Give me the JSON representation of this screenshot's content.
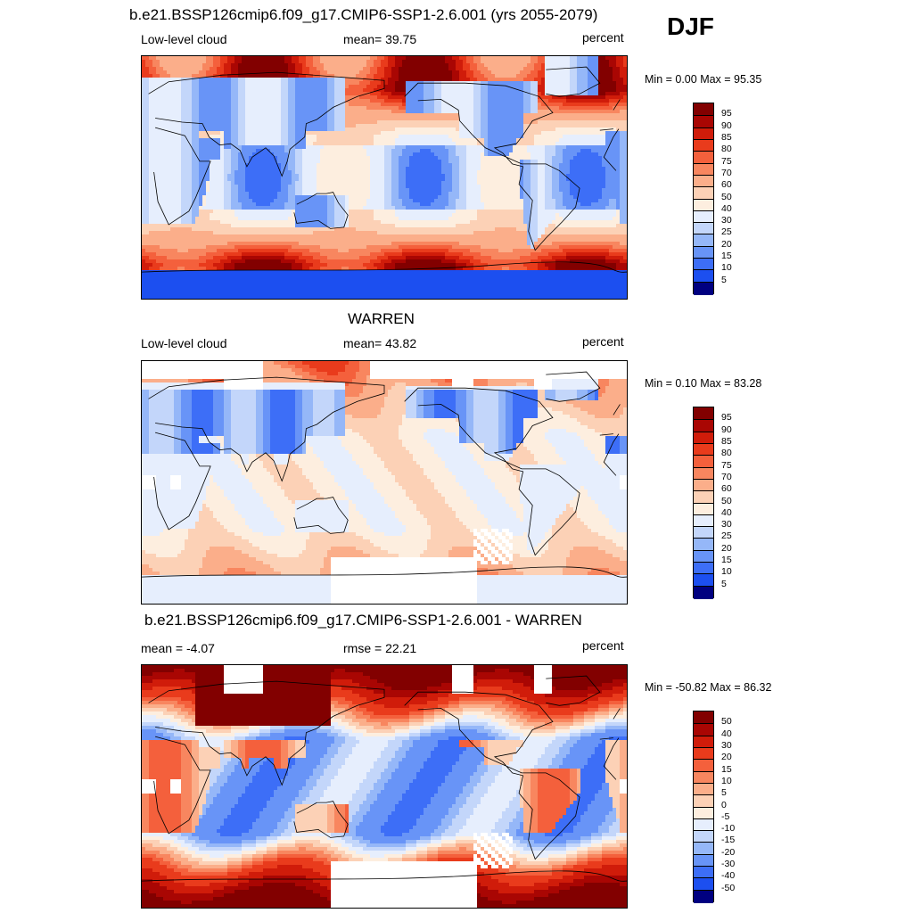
{
  "season": "DJF",
  "colors": {
    "scale": [
      "#000080",
      "#0016b6",
      "#0033d9",
      "#1c4ff0",
      "#3d6ef7",
      "#6894f7",
      "#95b7f8",
      "#c3d6fa",
      "#e6eefd",
      "#fdeedf",
      "#fcd1b6",
      "#fbae8a",
      "#f8865f",
      "#f4603c",
      "#e93b1c",
      "#d01c0a",
      "#a90603",
      "#820000"
    ],
    "missing": "#ffffff"
  },
  "chart_data": [
    {
      "type": "heatmap",
      "title": "b.e21.BSSP126cmip6.f09_g17.CMIP6-SSP1-2.6.001 (yrs 2055-2079)",
      "left_label": "Low-level cloud",
      "center_label": "mean=  39.75",
      "units": "percent",
      "minmax": "Min =    0.00 Max =  95.35",
      "colorbar_levels": [
        "95",
        "90",
        "85",
        "80",
        "75",
        "70",
        "60",
        "50",
        "40",
        "30",
        "25",
        "20",
        "15",
        "10",
        "5"
      ]
    },
    {
      "type": "heatmap",
      "title": "WARREN",
      "left_label": "Low-level cloud",
      "center_label": "mean=  43.82",
      "units": "percent",
      "minmax": "Min =    0.10 Max =  83.28",
      "colorbar_levels": [
        "95",
        "90",
        "85",
        "80",
        "75",
        "70",
        "60",
        "50",
        "40",
        "30",
        "25",
        "20",
        "15",
        "10",
        "5"
      ]
    },
    {
      "type": "heatmap",
      "title": "b.e21.BSSP126cmip6.f09_g17.CMIP6-SSP1-2.6.001 - WARREN",
      "left_label": "mean =  -4.07",
      "center_label": "rmse =  22.21",
      "units": "percent",
      "minmax": "Min = -50.82 Max =  86.32",
      "colorbar_levels": [
        "50",
        "40",
        "30",
        "20",
        "15",
        "10",
        "5",
        "0",
        "-5",
        "-10",
        "-15",
        "-20",
        "-30",
        "-40",
        "-50"
      ]
    }
  ]
}
